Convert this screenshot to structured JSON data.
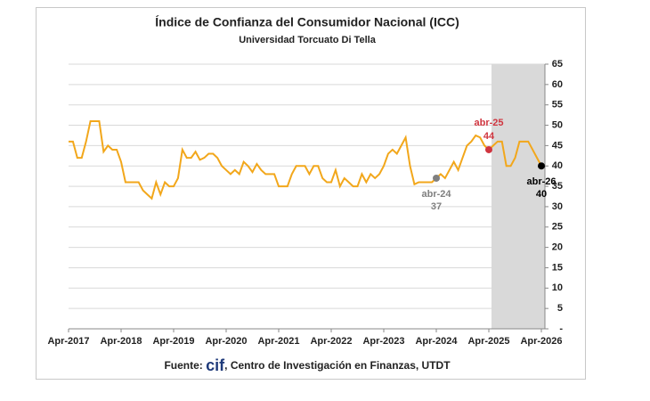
{
  "chart_data": {
    "type": "line",
    "title": "Índice de Confianza del Consumidor Nacional (ICC)",
    "subtitle": "Universidad Torcuato Di Tella",
    "source": {
      "prefix": "Fuente: ",
      "logo": "cif",
      "text": ", Centro de Investigación en Finanzas, UTDT"
    },
    "categories": [
      "Apr-2017",
      null,
      null,
      null,
      null,
      null,
      null,
      null,
      null,
      null,
      null,
      null,
      "Apr-2018",
      null,
      null,
      null,
      null,
      null,
      null,
      null,
      null,
      null,
      null,
      null,
      "Apr-2019",
      null,
      null,
      null,
      null,
      null,
      null,
      null,
      null,
      null,
      null,
      null,
      "Apr-2020",
      null,
      null,
      null,
      null,
      null,
      null,
      null,
      null,
      null,
      null,
      null,
      "Apr-2021",
      null,
      null,
      null,
      null,
      null,
      null,
      null,
      null,
      null,
      null,
      null,
      "Apr-2022",
      null,
      null,
      null,
      null,
      null,
      null,
      null,
      null,
      null,
      null,
      null,
      "Apr-2023",
      null,
      null,
      null,
      null,
      null,
      null,
      null,
      null,
      null,
      null,
      null,
      "Apr-2024",
      null,
      null,
      null,
      null,
      null,
      null,
      null,
      null,
      null,
      null,
      null,
      "Apr-2025",
      null,
      null,
      null,
      null,
      null,
      null,
      null,
      null,
      null,
      null,
      null,
      "Apr-2026"
    ],
    "values": [
      46,
      46,
      42,
      42,
      46,
      51,
      51,
      51,
      43.5,
      45,
      44,
      44,
      41,
      36,
      36,
      36,
      36,
      34,
      33,
      32,
      36,
      33,
      36,
      35,
      35,
      37,
      44,
      42,
      42,
      43.5,
      41.5,
      42,
      43,
      43,
      42,
      40,
      39,
      38,
      39,
      38,
      41,
      40,
      38.5,
      40.5,
      39,
      38,
      38,
      38,
      35,
      35,
      35,
      38,
      40,
      40,
      40,
      38,
      40,
      40,
      37,
      36,
      36,
      39,
      35,
      37,
      36,
      35,
      35,
      38,
      36,
      38,
      37,
      38,
      40,
      43,
      44,
      43,
      45,
      47,
      40,
      35.5,
      36,
      36,
      36,
      36,
      37,
      38,
      37,
      39,
      41,
      39,
      42,
      45,
      46,
      47.5,
      47,
      45,
      44,
      45,
      46,
      46,
      40,
      40,
      42,
      46,
      46,
      46,
      44,
      42,
      40
    ],
    "color": "#f2a71b",
    "ylim": [
      0,
      65
    ],
    "yticks": [
      {
        "value": 0,
        "label": "-"
      },
      5,
      10,
      15,
      20,
      25,
      30,
      35,
      40,
      45,
      50,
      55,
      60,
      65
    ],
    "grid": true,
    "y_axis_side": "right",
    "shaded_from": "Apr-2025",
    "highlights": [
      {
        "label": "abr-24",
        "value": 37,
        "color": "#808080",
        "position": "below"
      },
      {
        "label": "abr-25",
        "value": 44,
        "color": "#d0353f",
        "position": "above"
      },
      {
        "label": "abr-26",
        "value": 40,
        "color": "#000000",
        "position": "below"
      }
    ]
  }
}
